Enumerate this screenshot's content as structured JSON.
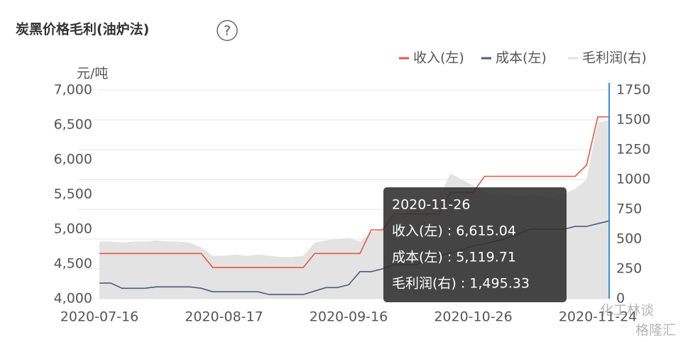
{
  "chart_data": {
    "type": "line",
    "title": "炭黑价格毛利(油炉法)",
    "help_icon": "?",
    "y_label": "元/吨",
    "categories": [
      "2020-07-16",
      null,
      null,
      null,
      null,
      null,
      null,
      null,
      null,
      null,
      null,
      "2020-08-17",
      null,
      null,
      null,
      null,
      null,
      null,
      null,
      null,
      null,
      null,
      "2020-09-16",
      null,
      null,
      null,
      null,
      null,
      null,
      null,
      null,
      null,
      null,
      "2020-10-26",
      null,
      null,
      null,
      null,
      null,
      null,
      null,
      null,
      null,
      null,
      "2020-11-24",
      null
    ],
    "series": [
      {
        "name": "收入(左)",
        "color": "#e8563f",
        "axis": "y",
        "values": [
          4650,
          4650,
          4650,
          4650,
          4650,
          4650,
          4650,
          4650,
          4650,
          4650,
          4450,
          4450,
          4450,
          4450,
          4450,
          4450,
          4450,
          4450,
          4450,
          4650,
          4650,
          4650,
          4650,
          4650,
          4990,
          4990,
          5220,
          5220,
          5220,
          5220,
          5220,
          5530,
          5530,
          5530,
          5760,
          5760,
          5760,
          5760,
          5760,
          5760,
          5760,
          5760,
          5760,
          5920,
          6615.04,
          6615.04
        ]
      },
      {
        "name": "成本(左)",
        "color": "#4a5d80",
        "axis": "y",
        "values": [
          4225,
          4225,
          4150,
          4150,
          4150,
          4170,
          4170,
          4170,
          4170,
          4150,
          4100,
          4100,
          4100,
          4100,
          4100,
          4060,
          4060,
          4060,
          4060,
          4110,
          4160,
          4160,
          4200,
          4390,
          4390,
          4430,
          4490,
          4490,
          4490,
          4560,
          4610,
          4660,
          4700,
          4760,
          4790,
          4830,
          4870,
          4930,
          5000,
          5000,
          5000,
          5000,
          5040,
          5040,
          5080,
          5119.71
        ]
      },
      {
        "name": "毛利润(右)",
        "color": "#e3e3e3",
        "axis": "y2",
        "values": [
          480,
          480,
          470,
          480,
          480,
          490,
          480,
          480,
          470,
          430,
          360,
          360,
          370,
          360,
          370,
          360,
          350,
          350,
          360,
          470,
          490,
          500,
          510,
          480,
          560,
          580,
          700,
          720,
          760,
          800,
          860,
          1050,
          1000,
          950,
          900,
          880,
          870,
          860,
          870,
          860,
          850,
          880,
          920,
          1000,
          1480,
          1495.33
        ]
      }
    ],
    "ylim": [
      4000,
      7000
    ],
    "yticks": [
      {
        "value": 4000,
        "label": "4,000"
      },
      {
        "value": 4500,
        "label": "4,500"
      },
      {
        "value": 5000,
        "label": "5,000"
      },
      {
        "value": 5500,
        "label": "5,500"
      },
      {
        "value": 6000,
        "label": "6,000"
      },
      {
        "value": 6500,
        "label": "6,500"
      },
      {
        "value": 7000,
        "label": "7,000"
      }
    ],
    "y2lim": [
      0,
      1750
    ],
    "y2ticks": [
      0,
      250,
      500,
      750,
      1000,
      1250,
      1500,
      1750
    ],
    "grid": true,
    "legend": "top-right",
    "tooltip": [
      "2020-11-26",
      "收入(左) : 6,615.04",
      "成本(左) : 5,119.71",
      "毛利润(右) : 1,495.33"
    ],
    "watermarks": [
      "化工林谈",
      "格隆汇"
    ]
  }
}
